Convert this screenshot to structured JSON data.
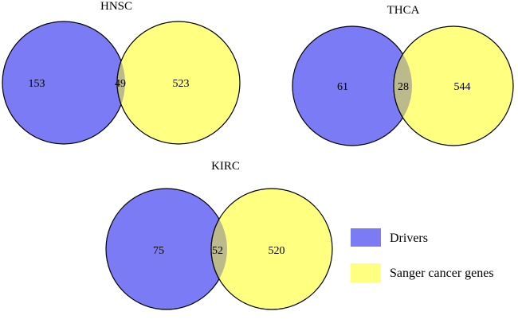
{
  "diagram": {
    "type": "venn",
    "sets": [
      "Drivers",
      "Sanger cancer genes"
    ],
    "colors": {
      "drivers": "#7b7bf5",
      "sanger": "#ffff80",
      "overlap": "#bcb98a",
      "outline": "#000000"
    },
    "panels": [
      {
        "title": "HNSC",
        "drivers_only": "153",
        "overlap": "49",
        "sanger_only": "523"
      },
      {
        "title": "THCA",
        "drivers_only": "61",
        "overlap": "28",
        "sanger_only": "544"
      },
      {
        "title": "KIRC",
        "drivers_only": "75",
        "overlap": "52",
        "sanger_only": "520"
      }
    ],
    "legend": [
      {
        "label": "Drivers",
        "swatch": "#7b7bf5"
      },
      {
        "label": "Sanger cancer genes",
        "swatch": "#ffff80"
      }
    ]
  }
}
